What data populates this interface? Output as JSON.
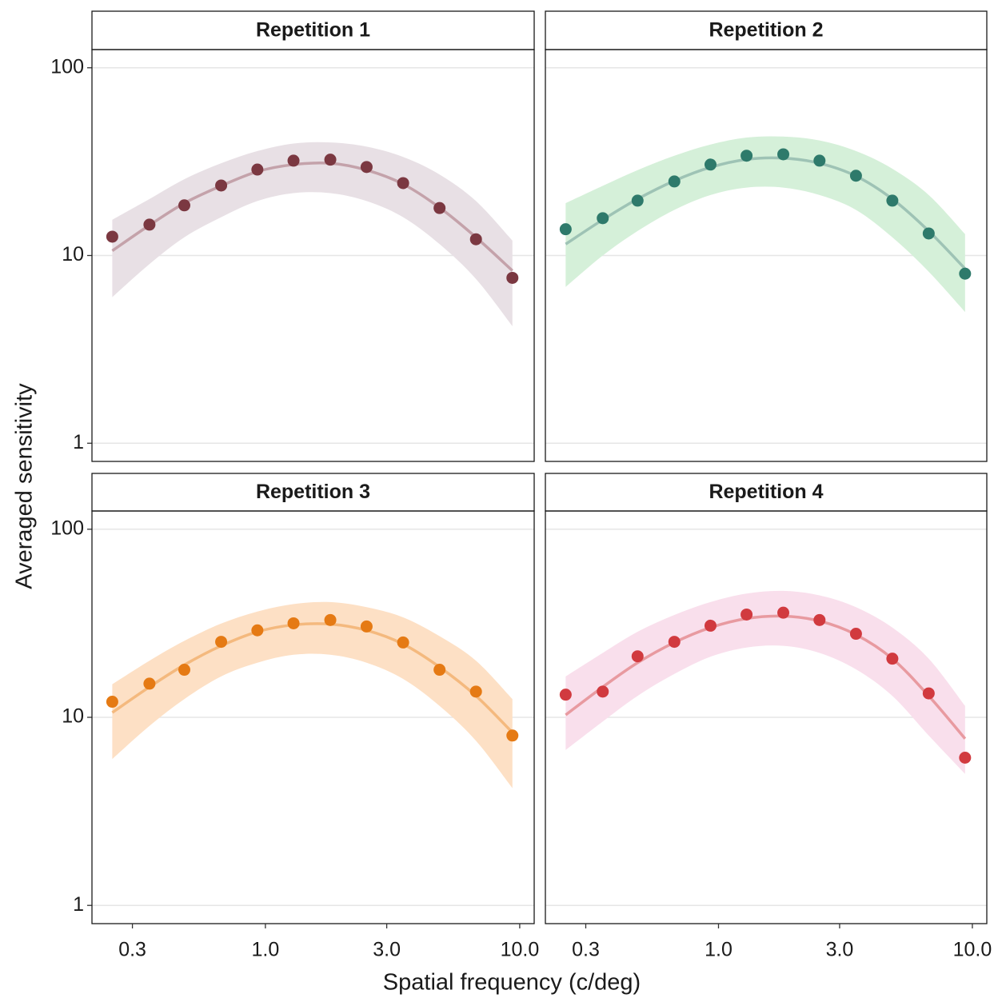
{
  "shared": {
    "xlabel": "Spatial frequency (c/deg)",
    "ylabel": "Averaged sensitivity",
    "log_x": true,
    "log_y": true,
    "grid": true,
    "xlim": [
      0.208,
      11.4
    ],
    "ylim": [
      0.8,
      125
    ],
    "xticks": [
      0.3,
      {
        "value": 1,
        "label": "1.0"
      },
      {
        "value": 3,
        "label": "3.0"
      },
      {
        "value": 10,
        "label": "10.0"
      }
    ],
    "yticks": [
      1,
      10,
      100
    ]
  },
  "chart_data": [
    {
      "type": "scatter",
      "title": "Repetition 1",
      "color": "#7b3841",
      "fit_color": "#c4a2aa",
      "band_color": "#e8e0e5",
      "x": [
        0.25,
        0.35,
        0.48,
        0.67,
        0.93,
        1.29,
        1.8,
        2.5,
        3.48,
        4.84,
        6.73,
        9.36
      ],
      "values": [
        12.6,
        14.6,
        18.5,
        23.6,
        28.7,
        32,
        32.4,
        29.6,
        24.3,
        17.9,
        12.2,
        7.6
      ],
      "fit": [
        10.6,
        14.5,
        19,
        23.5,
        28,
        30.5,
        31,
        28.5,
        24,
        18,
        12.5,
        8.3
      ],
      "lower": [
        6,
        9,
        12.5,
        16,
        19.5,
        21.5,
        21.5,
        19.5,
        16,
        11.5,
        7.5,
        4.2
      ],
      "upper": [
        15.5,
        20,
        25.5,
        31,
        36,
        39.5,
        40,
        38,
        33.5,
        27,
        19.5,
        12
      ]
    },
    {
      "type": "scatter",
      "title": "Repetition 2",
      "color": "#2e7a6b",
      "fit_color": "#9ec3b5",
      "band_color": "#d5f0d9",
      "x": [
        0.25,
        0.35,
        0.48,
        0.67,
        0.93,
        1.29,
        1.8,
        2.5,
        3.48,
        4.84,
        6.73,
        9.36
      ],
      "values": [
        13.8,
        15.8,
        19.6,
        24.8,
        30.5,
        34,
        34.6,
        32,
        26.6,
        19.6,
        13.1,
        8
      ],
      "fit": [
        11.5,
        15.5,
        20,
        25,
        29.5,
        32.5,
        33,
        31,
        26.5,
        20,
        13.5,
        8.5
      ],
      "lower": [
        6.8,
        10,
        13.5,
        17.5,
        21,
        23,
        23,
        21,
        17.5,
        12.5,
        8.2,
        5
      ],
      "upper": [
        19,
        23.5,
        28.5,
        34,
        39,
        42.5,
        43,
        41,
        36,
        29,
        21,
        13
      ]
    },
    {
      "type": "scatter",
      "title": "Repetition 3",
      "color": "#e57a14",
      "fit_color": "#f4b97e",
      "band_color": "#fde0c5",
      "x": [
        0.25,
        0.35,
        0.48,
        0.67,
        0.93,
        1.29,
        1.8,
        2.5,
        3.48,
        4.84,
        6.73,
        9.36
      ],
      "values": [
        12.1,
        15.1,
        17.9,
        25.2,
        29,
        31.6,
        32.9,
        30.4,
        25,
        17.9,
        13.7,
        8
      ],
      "fit": [
        10.6,
        14.5,
        19,
        24,
        28.5,
        31,
        31.3,
        29,
        24.5,
        18.5,
        13,
        8.3
      ],
      "lower": [
        6,
        9,
        12.5,
        16.5,
        19.5,
        21.5,
        21.5,
        19.5,
        16,
        11.5,
        7.5,
        4.2
      ],
      "upper": [
        15,
        20,
        25.5,
        31.5,
        36.5,
        40,
        41,
        38.5,
        34,
        27,
        20,
        12.5
      ]
    },
    {
      "type": "scatter",
      "title": "Repetition 4",
      "color": "#d13a3f",
      "fit_color": "#e89aa0",
      "band_color": "#f9dfec",
      "x": [
        0.25,
        0.35,
        0.48,
        0.67,
        0.93,
        1.29,
        1.8,
        2.5,
        3.48,
        4.84,
        6.73,
        9.36
      ],
      "values": [
        13.2,
        13.7,
        21.1,
        25.2,
        30.7,
        35.2,
        36,
        32.9,
        27.8,
        20.5,
        13.4,
        6.1
      ],
      "fit": [
        10.3,
        14.5,
        19.5,
        25,
        30,
        33.5,
        34.5,
        32.5,
        27.5,
        20.5,
        13,
        7.7
      ],
      "lower": [
        6.7,
        9.5,
        13,
        17,
        21,
        23.5,
        24,
        22,
        18,
        13,
        8,
        5
      ],
      "upper": [
        16.5,
        22,
        28.5,
        35,
        41,
        45.5,
        47,
        44.5,
        38.5,
        30,
        20.5,
        11.5
      ]
    }
  ]
}
